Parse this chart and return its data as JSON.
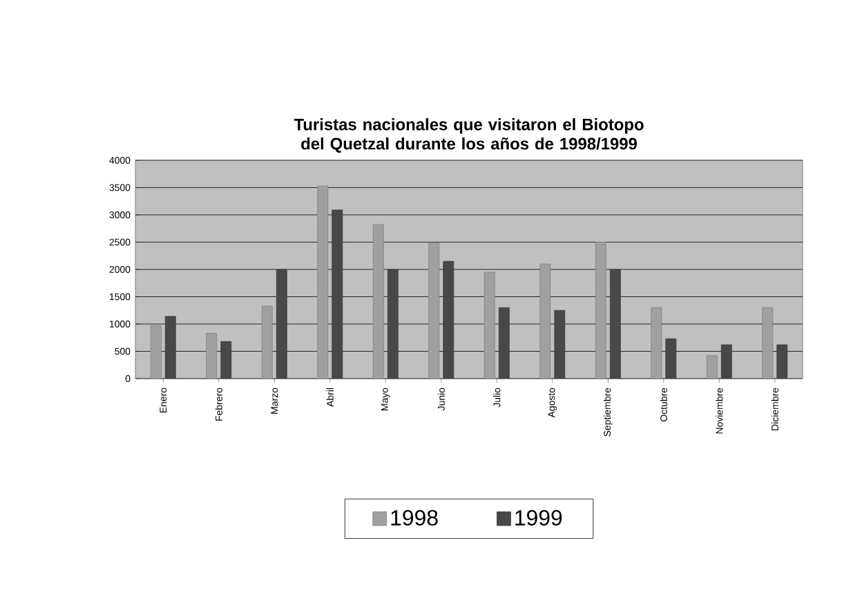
{
  "chart_data": {
    "type": "bar",
    "title": "Turistas nacionales que visitaron el Biotopo del Quetzal durante los años de 1998/1999",
    "categories": [
      "Enero",
      "Febrero",
      "Marzo",
      "Abril",
      "Mayo",
      "Junio",
      "Julio",
      "Agosto",
      "Septiembre",
      "Octubre",
      "Noviembre",
      "Diciembre"
    ],
    "series": [
      {
        "name": "1998",
        "color": "#a0a0a0",
        "values": [
          970,
          830,
          1330,
          3530,
          2820,
          2480,
          1950,
          2100,
          2500,
          1300,
          420,
          1300
        ]
      },
      {
        "name": "1999",
        "color": "#484848",
        "values": [
          1140,
          680,
          2000,
          3090,
          2000,
          2150,
          1300,
          1250,
          2000,
          730,
          620,
          620
        ]
      }
    ],
    "ylim": [
      0,
      4000
    ],
    "yticks": [
      0,
      500,
      1000,
      1500,
      2000,
      2500,
      3000,
      3500,
      4000
    ],
    "grid": "y",
    "legend": "bottom"
  }
}
